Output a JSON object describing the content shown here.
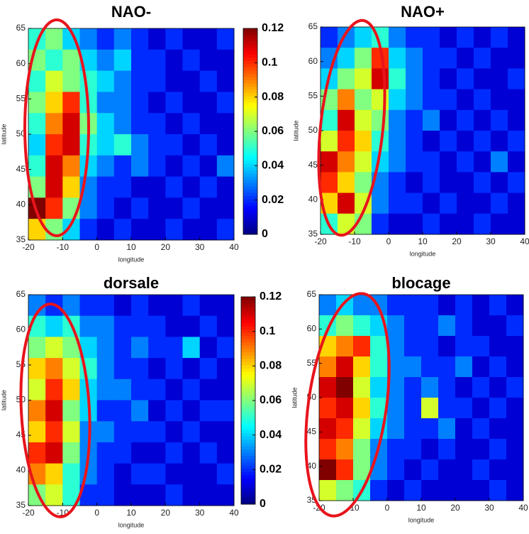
{
  "chart_data": [
    {
      "type": "heatmap",
      "title": "NAO-",
      "x_label": "longitude",
      "y_label": "latitude",
      "colormap": "jet",
      "xlim": [
        -20,
        40
      ],
      "ylim": [
        35,
        65
      ],
      "xticks": [
        -20,
        -10,
        0,
        10,
        20,
        30,
        40
      ],
      "yticks": [
        35,
        40,
        45,
        50,
        55,
        60,
        65
      ],
      "clim": [
        0,
        0.12
      ],
      "colorbar_ticks": [
        0,
        0.02,
        0.04,
        0.06,
        0.08,
        0.1,
        0.12
      ],
      "z": [
        [
          0.05,
          0.06,
          0.04,
          0.03,
          0.02,
          0.03,
          0.02,
          0.01,
          0.02,
          0.01,
          0.01,
          0.02
        ],
        [
          0.06,
          0.05,
          0.06,
          0.04,
          0.03,
          0.04,
          0.02,
          0.02,
          0.01,
          0.02,
          0.01,
          0.01
        ],
        [
          0.05,
          0.07,
          0.06,
          0.05,
          0.04,
          0.03,
          0.02,
          0.02,
          0.01,
          0.01,
          0.02,
          0.01
        ],
        [
          0.06,
          0.08,
          0.1,
          0.05,
          0.03,
          0.03,
          0.02,
          0.01,
          0.02,
          0.01,
          0.01,
          0.02
        ],
        [
          0.05,
          0.09,
          0.11,
          0.06,
          0.04,
          0.03,
          0.02,
          0.02,
          0.01,
          0.02,
          0.01,
          0.01
        ],
        [
          0.04,
          0.1,
          0.11,
          0.05,
          0.04,
          0.05,
          0.03,
          0.02,
          0.02,
          0.01,
          0.02,
          0.01
        ],
        [
          0.05,
          0.11,
          0.09,
          0.04,
          0.03,
          0.02,
          0.03,
          0.02,
          0.01,
          0.02,
          0.01,
          0.03
        ],
        [
          0.06,
          0.11,
          0.08,
          0.03,
          0.02,
          0.02,
          0.01,
          0.01,
          0.02,
          0.01,
          0.02,
          0.01
        ],
        [
          0.12,
          0.1,
          0.06,
          0.03,
          0.02,
          0.01,
          0.02,
          0.01,
          0.01,
          0.02,
          0.01,
          0.01
        ],
        [
          0.08,
          0.06,
          0.04,
          0.02,
          0.01,
          0.02,
          0.01,
          0.01,
          0.02,
          0.01,
          0.01,
          0.02
        ]
      ]
    },
    {
      "type": "heatmap",
      "title": "NAO+",
      "x_label": "longitude",
      "y_label": "latitude",
      "colormap": "jet",
      "xlim": [
        -20,
        40
      ],
      "ylim": [
        35,
        65
      ],
      "xticks": [
        -20,
        -10,
        0,
        10,
        20,
        30,
        40
      ],
      "yticks": [
        35,
        40,
        45,
        50,
        55,
        60,
        65
      ],
      "clim": [
        0,
        0.12
      ],
      "z": [
        [
          0.02,
          0.03,
          0.04,
          0.05,
          0.03,
          0.02,
          0.02,
          0.01,
          0.02,
          0.01,
          0.02,
          0.01
        ],
        [
          0.03,
          0.04,
          0.06,
          0.1,
          0.04,
          0.03,
          0.02,
          0.02,
          0.01,
          0.02,
          0.01,
          0.01
        ],
        [
          0.04,
          0.06,
          0.07,
          0.11,
          0.05,
          0.03,
          0.02,
          0.01,
          0.02,
          0.01,
          0.01,
          0.02
        ],
        [
          0.06,
          0.09,
          0.06,
          0.07,
          0.04,
          0.03,
          0.02,
          0.02,
          0.01,
          0.02,
          0.01,
          0.01
        ],
        [
          0.05,
          0.11,
          0.07,
          0.06,
          0.03,
          0.02,
          0.03,
          0.01,
          0.02,
          0.01,
          0.02,
          0.01
        ],
        [
          0.07,
          0.1,
          0.08,
          0.05,
          0.03,
          0.02,
          0.01,
          0.02,
          0.01,
          0.02,
          0.01,
          0.02
        ],
        [
          0.11,
          0.09,
          0.07,
          0.04,
          0.03,
          0.02,
          0.02,
          0.01,
          0.02,
          0.01,
          0.03,
          0.01
        ],
        [
          0.1,
          0.08,
          0.06,
          0.03,
          0.02,
          0.01,
          0.02,
          0.01,
          0.01,
          0.02,
          0.01,
          0.02
        ],
        [
          0.08,
          0.11,
          0.07,
          0.03,
          0.02,
          0.02,
          0.01,
          0.02,
          0.01,
          0.01,
          0.02,
          0.01
        ],
        [
          0.05,
          0.07,
          0.06,
          0.02,
          0.01,
          0.01,
          0.02,
          0.01,
          0.01,
          0.02,
          0.01,
          0.01
        ]
      ]
    },
    {
      "type": "heatmap",
      "title": "dorsale",
      "x_label": "longitude",
      "y_label": "latitude",
      "colormap": "jet",
      "xlim": [
        -20,
        40
      ],
      "ylim": [
        35,
        65
      ],
      "xticks": [
        -20,
        -10,
        0,
        10,
        20,
        30,
        40
      ],
      "yticks": [
        35,
        40,
        45,
        50,
        55,
        60,
        65
      ],
      "clim": [
        0,
        0.12
      ],
      "colorbar_ticks": [
        0,
        0.02,
        0.04,
        0.06,
        0.08,
        0.1,
        0.12
      ],
      "z": [
        [
          0.03,
          0.02,
          0.03,
          0.02,
          0.02,
          0.01,
          0.02,
          0.01,
          0.01,
          0.02,
          0.01,
          0.01
        ],
        [
          0.05,
          0.04,
          0.05,
          0.03,
          0.03,
          0.02,
          0.02,
          0.02,
          0.01,
          0.01,
          0.02,
          0.01
        ],
        [
          0.06,
          0.07,
          0.06,
          0.04,
          0.03,
          0.02,
          0.03,
          0.02,
          0.02,
          0.04,
          0.01,
          0.02
        ],
        [
          0.08,
          0.09,
          0.07,
          0.05,
          0.03,
          0.02,
          0.02,
          0.01,
          0.02,
          0.01,
          0.02,
          0.01
        ],
        [
          0.07,
          0.1,
          0.08,
          0.04,
          0.03,
          0.03,
          0.02,
          0.02,
          0.01,
          0.02,
          0.01,
          0.01
        ],
        [
          0.09,
          0.11,
          0.06,
          0.04,
          0.02,
          0.02,
          0.03,
          0.01,
          0.02,
          0.01,
          0.02,
          0.02
        ],
        [
          0.08,
          0.1,
          0.07,
          0.03,
          0.03,
          0.02,
          0.02,
          0.02,
          0.01,
          0.02,
          0.01,
          0.01
        ],
        [
          0.1,
          0.11,
          0.06,
          0.03,
          0.02,
          0.02,
          0.01,
          0.01,
          0.02,
          0.01,
          0.02,
          0.01
        ],
        [
          0.09,
          0.08,
          0.05,
          0.03,
          0.02,
          0.01,
          0.02,
          0.02,
          0.01,
          0.01,
          0.01,
          0.02
        ],
        [
          0.06,
          0.07,
          0.05,
          0.02,
          0.02,
          0.01,
          0.01,
          0.01,
          0.02,
          0.01,
          0.01,
          0.01
        ]
      ]
    },
    {
      "type": "heatmap",
      "title": "blocage",
      "x_label": "longitude",
      "y_label": "latitude",
      "colormap": "jet",
      "xlim": [
        -20,
        40
      ],
      "ylim": [
        35,
        65
      ],
      "xticks": [
        -20,
        -10,
        0,
        10,
        20,
        30,
        40
      ],
      "yticks": [
        35,
        40,
        45,
        50,
        55,
        60,
        65
      ],
      "clim": [
        0,
        0.12
      ],
      "z": [
        [
          0.03,
          0.04,
          0.03,
          0.03,
          0.02,
          0.02,
          0.02,
          0.01,
          0.02,
          0.01,
          0.02,
          0.01
        ],
        [
          0.05,
          0.06,
          0.05,
          0.04,
          0.03,
          0.02,
          0.02,
          0.03,
          0.02,
          0.01,
          0.01,
          0.02
        ],
        [
          0.08,
          0.09,
          0.1,
          0.05,
          0.03,
          0.02,
          0.02,
          0.01,
          0.02,
          0.02,
          0.01,
          0.01
        ],
        [
          0.09,
          0.11,
          0.08,
          0.05,
          0.03,
          0.03,
          0.02,
          0.02,
          0.03,
          0.01,
          0.02,
          0.01
        ],
        [
          0.11,
          0.12,
          0.07,
          0.04,
          0.03,
          0.02,
          0.03,
          0.02,
          0.01,
          0.02,
          0.01,
          0.02
        ],
        [
          0.1,
          0.11,
          0.08,
          0.05,
          0.03,
          0.02,
          0.07,
          0.02,
          0.02,
          0.01,
          0.02,
          0.01
        ],
        [
          0.11,
          0.1,
          0.07,
          0.04,
          0.03,
          0.02,
          0.02,
          0.03,
          0.01,
          0.02,
          0.01,
          0.01
        ],
        [
          0.1,
          0.09,
          0.06,
          0.03,
          0.02,
          0.02,
          0.01,
          0.02,
          0.01,
          0.01,
          0.02,
          0.01
        ],
        [
          0.12,
          0.1,
          0.06,
          0.03,
          0.02,
          0.01,
          0.02,
          0.01,
          0.01,
          0.02,
          0.01,
          0.01
        ],
        [
          0.07,
          0.06,
          0.05,
          0.02,
          0.01,
          0.02,
          0.01,
          0.01,
          0.01,
          0.01,
          0.02,
          0.01
        ]
      ]
    }
  ]
}
